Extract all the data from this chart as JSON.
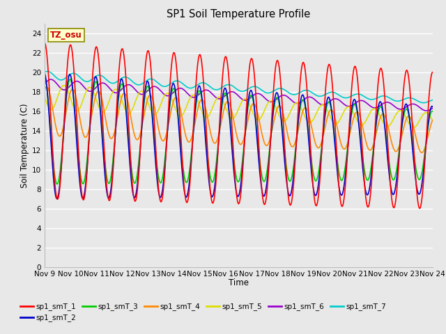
{
  "title": "SP1 Soil Temperature Profile",
  "xlabel": "Time",
  "ylabel": "Soil Temperature (C)",
  "ylim": [
    0,
    25
  ],
  "yticks": [
    0,
    2,
    4,
    6,
    8,
    10,
    12,
    14,
    16,
    18,
    20,
    22,
    24
  ],
  "xtick_labels": [
    "Nov 9",
    "Nov 10",
    "Nov 11",
    "Nov 12",
    "Nov 13",
    "Nov 14",
    "Nov 15",
    "Nov 16",
    "Nov 17",
    "Nov 18",
    "Nov 19",
    "Nov 20",
    "Nov 21",
    "Nov 22",
    "Nov 23",
    "Nov 24"
  ],
  "series_colors": {
    "sp1_smT_1": "#ff0000",
    "sp1_smT_2": "#0000cc",
    "sp1_smT_3": "#00cc00",
    "sp1_smT_4": "#ff8800",
    "sp1_smT_5": "#dddd00",
    "sp1_smT_6": "#9900cc",
    "sp1_smT_7": "#00cccc"
  },
  "annotation_text": "TZ_osu",
  "annotation_color": "#cc0000",
  "annotation_bg": "#ffffcc",
  "annotation_border": "#888800",
  "bg_color": "#e8e8e8",
  "grid_color": "#ffffff",
  "linewidth": 1.2
}
